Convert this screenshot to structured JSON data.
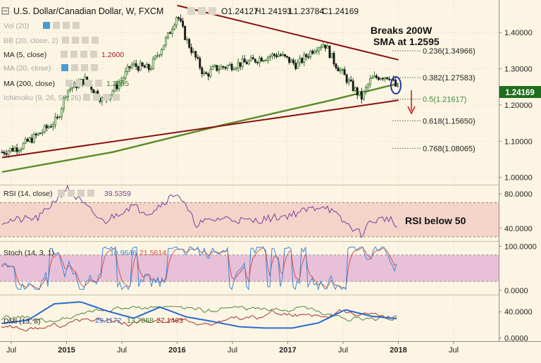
{
  "header": {
    "symbol_title": "U.S. Dollar/Canadian Dollar, W, FXCM",
    "ohlc": [
      "O1.24127",
      "H1.24193",
      "L1.23784",
      "C1.24169"
    ]
  },
  "studies": [
    {
      "label": "Vol (20)",
      "value": ""
    },
    {
      "label": "BB (20, close, 2)",
      "value": ""
    },
    {
      "label": "MA (5, close)",
      "value": "1.2600"
    },
    {
      "label": "MA (20, close)",
      "value": ""
    },
    {
      "label": "MA (200, close)",
      "value": "1.2595"
    },
    {
      "label": "Ichimoku (9, 26, 52, 26)",
      "value": ""
    }
  ],
  "annotations": {
    "breaks_line1": "Breaks 200W",
    "breaks_line2": "SMA at 1.2595",
    "rsi_note": "RSI below 50"
  },
  "colors": {
    "background": "#fcf5e3",
    "price_up": "#1a6b1a",
    "price_down": "#1a1a1a",
    "trendline": "#8b1010",
    "sma200": "#5a8a2a",
    "rsi_line": "#7b3fa0",
    "rsi_band": "#f4d4c8",
    "stoch_band": "#e8c0d8",
    "stoch_k": "#3a8ad8",
    "stoch_d": "#d04a3a",
    "dmi_adx": "#2a6ad0",
    "dmi_plus": "#3a7a2a",
    "dmi_minus": "#a02020",
    "fib_label_green": "#3a8a3a",
    "ellipse": "#2233aa",
    "arrow": "#cc2222",
    "price_tag": "#1f6e1f"
  },
  "price_tag": "1.24169",
  "chart_data": [
    {
      "type": "candlestick",
      "panel": "price",
      "title": "U.S. Dollar/Canadian Dollar, W, FXCM",
      "x_tick_labels": [
        "Jul",
        "2015",
        "Jul",
        "2016",
        "Jul",
        "2017",
        "Jul",
        "2018",
        "Jul"
      ],
      "y_tick_labels": [
        "1.40000",
        "1.30000",
        "1.20000",
        "1.10000",
        "1.00000"
      ],
      "ylim": [
        0.98,
        1.49
      ],
      "close_path": [
        [
          "2014-06",
          1.07
        ],
        [
          "2014-08",
          1.085
        ],
        [
          "2014-10",
          1.12
        ],
        [
          "2014-12",
          1.16
        ],
        [
          "2015-01",
          1.24
        ],
        [
          "2015-03",
          1.27
        ],
        [
          "2015-05",
          1.21
        ],
        [
          "2015-06",
          1.24
        ],
        [
          "2015-07",
          1.27
        ],
        [
          "2015-08",
          1.31
        ],
        [
          "2015-10",
          1.3
        ],
        [
          "2015-12",
          1.39
        ],
        [
          "2016-01",
          1.45
        ],
        [
          "2016-02",
          1.38
        ],
        [
          "2016-04",
          1.28
        ],
        [
          "2016-05",
          1.3
        ],
        [
          "2016-07",
          1.31
        ],
        [
          "2016-09",
          1.32
        ],
        [
          "2016-10",
          1.33
        ],
        [
          "2016-12",
          1.34
        ],
        [
          "2017-02",
          1.31
        ],
        [
          "2017-04",
          1.36
        ],
        [
          "2017-05",
          1.37
        ],
        [
          "2017-06",
          1.32
        ],
        [
          "2017-08",
          1.25
        ],
        [
          "2017-09",
          1.22
        ],
        [
          "2017-10",
          1.27
        ],
        [
          "2017-11",
          1.28
        ],
        [
          "2017-12",
          1.28
        ],
        [
          "2018-01",
          1.24
        ]
      ],
      "lines": [
        {
          "name": "MA (200, close)",
          "values": [
            [
              "2014-06",
              1.015
            ],
            [
              "2015-06",
              1.07
            ],
            [
              "2016-06",
              1.145
            ],
            [
              "2017-06",
              1.215
            ],
            [
              "2018-01",
              1.2595
            ]
          ]
        },
        {
          "name": "Resistance",
          "values": [
            [
              "2016-01",
              1.475
            ],
            [
              "2018-01",
              1.325
            ]
          ]
        },
        {
          "name": "Support",
          "values": [
            [
              "2014-06",
              1.055
            ],
            [
              "2018-01",
              1.213
            ]
          ]
        }
      ],
      "fibonacci_levels": [
        {
          "label": "0.236(1.34966)",
          "value": 1.34966
        },
        {
          "label": "0.382(1.27583)",
          "value": 1.27583
        },
        {
          "label": "0.5(1.21617)",
          "value": 1.21617
        },
        {
          "label": "0.618(1.15650)",
          "value": 1.1565
        },
        {
          "label": "0.768(1.08065)",
          "value": 1.08065
        }
      ]
    },
    {
      "type": "line",
      "panel": "rsi",
      "name": "RSI (14, close)",
      "value_label": "39.5359",
      "y_tick_labels": [
        "80.0000",
        "40.0000"
      ],
      "ylim": [
        25,
        90
      ],
      "band": [
        30,
        70
      ],
      "x": [
        "2014-06",
        "2014-10",
        "2015-01",
        "2015-03",
        "2015-05",
        "2015-08",
        "2015-10",
        "2016-01",
        "2016-03",
        "2016-06",
        "2016-09",
        "2017-01",
        "2017-05",
        "2017-07",
        "2017-09",
        "2017-10",
        "2017-12",
        "2018-01"
      ],
      "values": [
        48,
        52,
        87,
        66,
        47,
        66,
        58,
        82,
        45,
        52,
        48,
        55,
        67,
        48,
        33,
        48,
        52,
        39.5359
      ]
    },
    {
      "type": "line",
      "panel": "stoch",
      "name": "Stoch (14, 3, 1)",
      "value_labels": [
        "10.9646",
        "21.5614"
      ],
      "y_tick_labels": [
        "100.0000",
        "0.0000"
      ],
      "ylim": [
        -10,
        110
      ],
      "band": [
        20,
        80
      ]
    },
    {
      "type": "line",
      "panel": "dmi",
      "name": "DMI (13, 8)",
      "value_labels": [
        "29.1172",
        "13.7868",
        "27.1463"
      ],
      "y_tick_labels": [
        "40.0000",
        "0.0000"
      ],
      "ylim": [
        -5,
        65
      ],
      "series": [
        {
          "name": "ADX",
          "values": [
            22,
            27,
            52,
            55,
            41,
            30,
            47,
            32,
            25,
            17,
            15,
            15,
            23,
            43,
            33,
            29.1172
          ]
        }
      ]
    }
  ]
}
